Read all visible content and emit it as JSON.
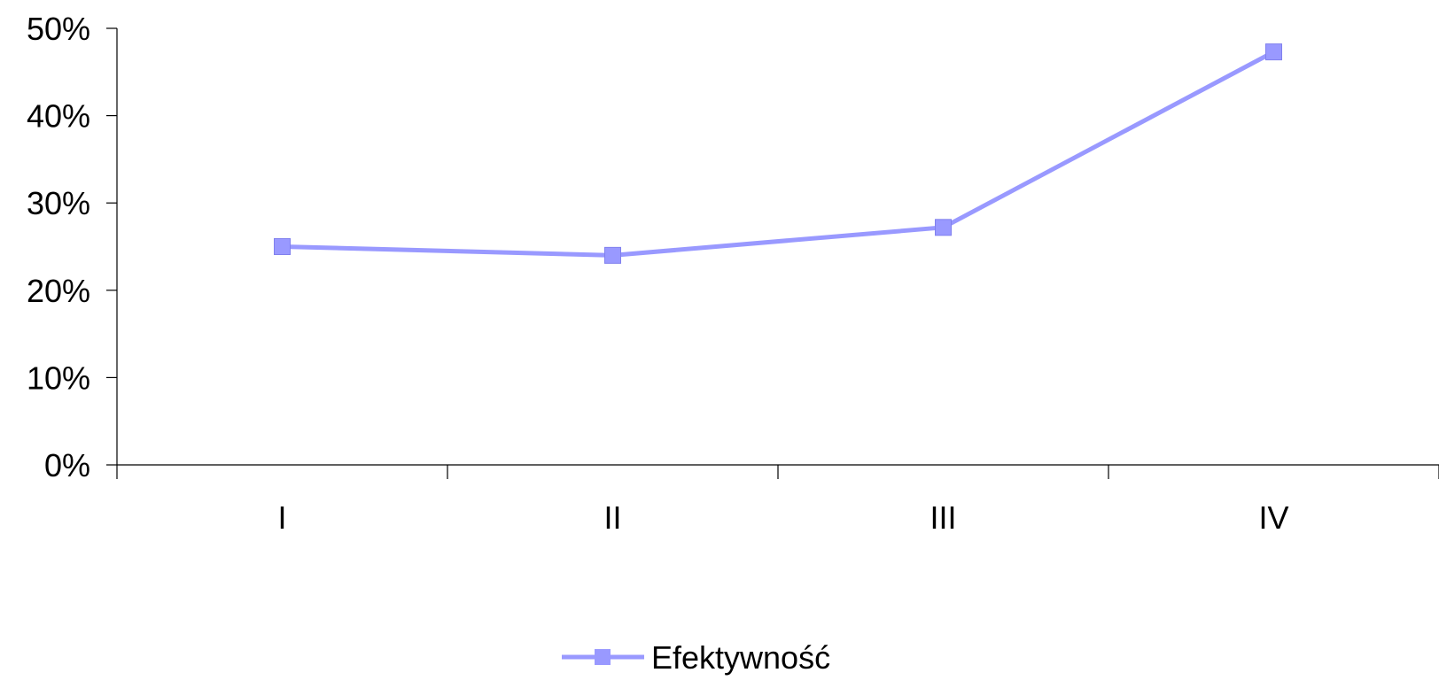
{
  "chart_data": {
    "type": "line",
    "categories": [
      "I",
      "II",
      "III",
      "IV"
    ],
    "series": [
      {
        "name": "Efektywność",
        "values": [
          25,
          24,
          27.2,
          47.3
        ],
        "color": "#9999ff",
        "marker": "square"
      }
    ],
    "ylim": [
      0,
      50
    ],
    "yticks": [
      0,
      10,
      20,
      30,
      40,
      50
    ],
    "ytick_labels": [
      "0%",
      "10%",
      "20%",
      "30%",
      "40%",
      "50%"
    ],
    "grid": false,
    "legend_position": "bottom-center"
  }
}
